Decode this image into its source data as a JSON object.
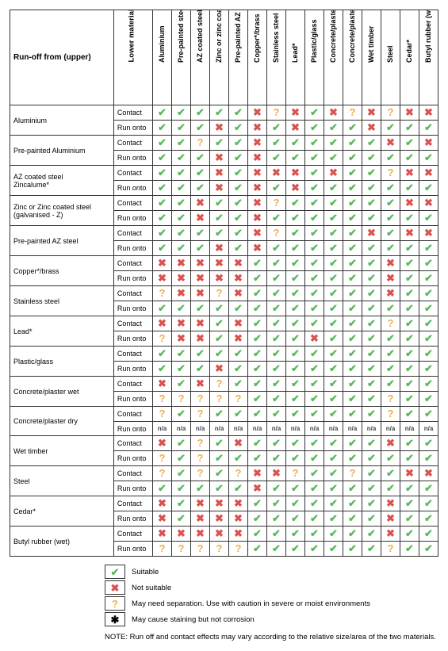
{
  "header": {
    "corner": "Run-off from (upper)",
    "subcol": "Lower material"
  },
  "columns": [
    "Aluminium",
    "Pre-painted steel",
    "AZ coated steel",
    "Zinc or zinc coated steel",
    "Pre-painted AZ steel",
    "Copper*/brass",
    "Stainless steel",
    "Lead*",
    "Plastic/glass",
    "Concrete/plaster wet",
    "Concrete/plaster dry",
    "Wet timber",
    "Steel",
    "Cedar*",
    "Butyl rubber (wet)"
  ],
  "rows": [
    {
      "name": "Aluminium",
      "contact": [
        "Y",
        "Y",
        "Y",
        "Y",
        "Y",
        "N",
        "Q",
        "N",
        "Y",
        "N",
        "Q",
        "N",
        "Q",
        "N",
        "N"
      ],
      "runonto": [
        "Y",
        "Y",
        "Y",
        "N",
        "Y",
        "N",
        "Y",
        "N",
        "Y",
        "Y",
        "Y",
        "N",
        "Y",
        "Y",
        "Y"
      ]
    },
    {
      "name": "Pre-painted Aluminium",
      "contact": [
        "Y",
        "Y",
        "Q",
        "Y",
        "Y",
        "N",
        "Y",
        "Y",
        "Y",
        "Y",
        "Y",
        "Y",
        "N",
        "Y",
        "N"
      ],
      "runonto": [
        "Y",
        "Y",
        "Y",
        "N",
        "Y",
        "N",
        "Y",
        "Y",
        "Y",
        "Y",
        "Y",
        "Y",
        "Y",
        "Y",
        "Y"
      ]
    },
    {
      "name": "AZ coated steel\nZincalume*",
      "contact": [
        "Y",
        "Y",
        "Y",
        "N",
        "Y",
        "N",
        "N",
        "N",
        "Y",
        "N",
        "Y",
        "Y",
        "Q",
        "N",
        "N"
      ],
      "runonto": [
        "Y",
        "Y",
        "Y",
        "N",
        "Y",
        "N",
        "Y",
        "N",
        "Y",
        "Y",
        "Y",
        "Y",
        "Y",
        "Y",
        "Y"
      ]
    },
    {
      "name": "Zinc or Zinc coated steel\n(galvanised - Z)",
      "contact": [
        "Y",
        "Y",
        "N",
        "Y",
        "Y",
        "N",
        "Q",
        "Y",
        "Y",
        "Y",
        "Y",
        "Y",
        "Y",
        "N",
        "N"
      ],
      "runonto": [
        "Y",
        "Y",
        "N",
        "Y",
        "Y",
        "N",
        "Y",
        "Y",
        "Y",
        "Y",
        "Y",
        "Y",
        "Y",
        "Y",
        "Y"
      ]
    },
    {
      "name": "Pre-painted AZ steel",
      "contact": [
        "Y",
        "Y",
        "Y",
        "Y",
        "Y",
        "N",
        "Q",
        "Y",
        "Y",
        "Y",
        "Y",
        "N",
        "Y",
        "N",
        "N"
      ],
      "runonto": [
        "Y",
        "Y",
        "Y",
        "N",
        "Y",
        "N",
        "Y",
        "Y",
        "Y",
        "Y",
        "Y",
        "Y",
        "Y",
        "Y",
        "Y"
      ]
    },
    {
      "name": "Copper*/brass",
      "contact": [
        "N",
        "N",
        "N",
        "N",
        "N",
        "Y",
        "Y",
        "Y",
        "Y",
        "Y",
        "Y",
        "Y",
        "N",
        "Y",
        "Y"
      ],
      "runonto": [
        "N",
        "N",
        "N",
        "N",
        "N",
        "Y",
        "Y",
        "Y",
        "Y",
        "Y",
        "Y",
        "Y",
        "N",
        "Y",
        "Y"
      ]
    },
    {
      "name": "Stainless steel",
      "contact": [
        "Q",
        "N",
        "N",
        "Q",
        "N",
        "Y",
        "Y",
        "Y",
        "Y",
        "Y",
        "Y",
        "Y",
        "N",
        "Y",
        "Y"
      ],
      "runonto": [
        "Y",
        "Y",
        "Y",
        "Y",
        "Y",
        "Y",
        "Y",
        "Y",
        "Y",
        "Y",
        "Y",
        "Y",
        "Y",
        "Y",
        "Y"
      ]
    },
    {
      "name": "Lead*",
      "contact": [
        "N",
        "N",
        "N",
        "Y",
        "N",
        "Y",
        "Y",
        "Y",
        "Y",
        "Y",
        "Y",
        "Y",
        "Q",
        "Y",
        "Y"
      ],
      "runonto": [
        "Q",
        "N",
        "N",
        "Y",
        "N",
        "Y",
        "Y",
        "Y",
        "N",
        "Y",
        "Y",
        "Y",
        "Y",
        "Y",
        "Y"
      ]
    },
    {
      "name": "Plastic/glass",
      "contact": [
        "Y",
        "Y",
        "Y",
        "Y",
        "Y",
        "Y",
        "Y",
        "Y",
        "Y",
        "Y",
        "Y",
        "Y",
        "Y",
        "Y",
        "Y"
      ],
      "runonto": [
        "Y",
        "Y",
        "Y",
        "N",
        "Y",
        "Y",
        "Y",
        "Y",
        "Y",
        "Y",
        "Y",
        "Y",
        "Y",
        "Y",
        "Y"
      ]
    },
    {
      "name": "Concrete/plaster wet",
      "contact": [
        "N",
        "Y",
        "N",
        "Q",
        "Y",
        "Y",
        "Y",
        "Y",
        "Y",
        "Y",
        "Y",
        "Y",
        "Y",
        "Y",
        "Y"
      ],
      "runonto": [
        "Q",
        "Q",
        "Q",
        "Q",
        "Q",
        "Y",
        "Y",
        "Y",
        "Y",
        "Y",
        "Y",
        "Y",
        "Q",
        "Y",
        "Y"
      ]
    },
    {
      "name": "Concrete/plaster dry",
      "contact": [
        "Q",
        "Y",
        "Q",
        "Y",
        "Y",
        "Y",
        "Y",
        "Y",
        "Y",
        "Y",
        "Y",
        "Y",
        "Q",
        "Y",
        "Y"
      ],
      "runonto": [
        "na",
        "na",
        "na",
        "na",
        "na",
        "na",
        "na",
        "na",
        "na",
        "na",
        "na",
        "na",
        "na",
        "na",
        "na"
      ]
    },
    {
      "name": "Wet timber",
      "contact": [
        "N",
        "Y",
        "Q",
        "Y",
        "N",
        "Y",
        "Y",
        "Y",
        "Y",
        "Y",
        "Y",
        "Y",
        "N",
        "Y",
        "Y"
      ],
      "runonto": [
        "Q",
        "Y",
        "Q",
        "Y",
        "Y",
        "Y",
        "Y",
        "Y",
        "Y",
        "Y",
        "Y",
        "Y",
        "Y",
        "Y",
        "Y"
      ]
    },
    {
      "name": "Steel",
      "contact": [
        "Q",
        "Y",
        "Q",
        "Y",
        "Q",
        "N",
        "N",
        "Q",
        "Y",
        "Y",
        "Q",
        "Y",
        "Y",
        "N",
        "N"
      ],
      "runonto": [
        "Y",
        "Y",
        "Y",
        "Y",
        "Y",
        "N",
        "Y",
        "Y",
        "Y",
        "Y",
        "Y",
        "Y",
        "Y",
        "Y",
        "Y"
      ]
    },
    {
      "name": "Cedar*",
      "contact": [
        "N",
        "Y",
        "N",
        "N",
        "N",
        "Y",
        "Y",
        "Y",
        "Y",
        "Y",
        "Y",
        "Y",
        "N",
        "Y",
        "Y"
      ],
      "runonto": [
        "N",
        "Y",
        "N",
        "N",
        "N",
        "Y",
        "Y",
        "Y",
        "Y",
        "Y",
        "Y",
        "Y",
        "N",
        "Y",
        "Y"
      ]
    },
    {
      "name": "Butyl rubber (wet)",
      "contact": [
        "N",
        "N",
        "N",
        "N",
        "N",
        "Y",
        "Y",
        "Y",
        "Y",
        "Y",
        "Y",
        "Y",
        "N",
        "Y",
        "Y"
      ],
      "runonto": [
        "Q",
        "Q",
        "Q",
        "Q",
        "Q",
        "Y",
        "Y",
        "Y",
        "Y",
        "Y",
        "Y",
        "Y",
        "Q",
        "Y",
        "Y"
      ]
    }
  ],
  "sublabels": {
    "contact": "Contact",
    "runonto": "Run onto"
  },
  "legend": {
    "Y": "Suitable",
    "N": "Not suitable",
    "Q": "May need separation. Use with caution in severe or moist environments",
    "star": "May cause staining but not corrosion"
  },
  "note": "NOTE: Run off and contact effects may vary according to the relative size/area of the two materials.",
  "symbols": {
    "Y": {
      "char": "✔",
      "color": "#5cb85c"
    },
    "N": {
      "char": "✖",
      "color": "#d9534f"
    },
    "Q": {
      "char": "?",
      "color": "#f0ad4e"
    },
    "na": {
      "char": "n/a",
      "color": "#444444"
    },
    "star": {
      "char": "✱",
      "color": "#000000"
    }
  }
}
